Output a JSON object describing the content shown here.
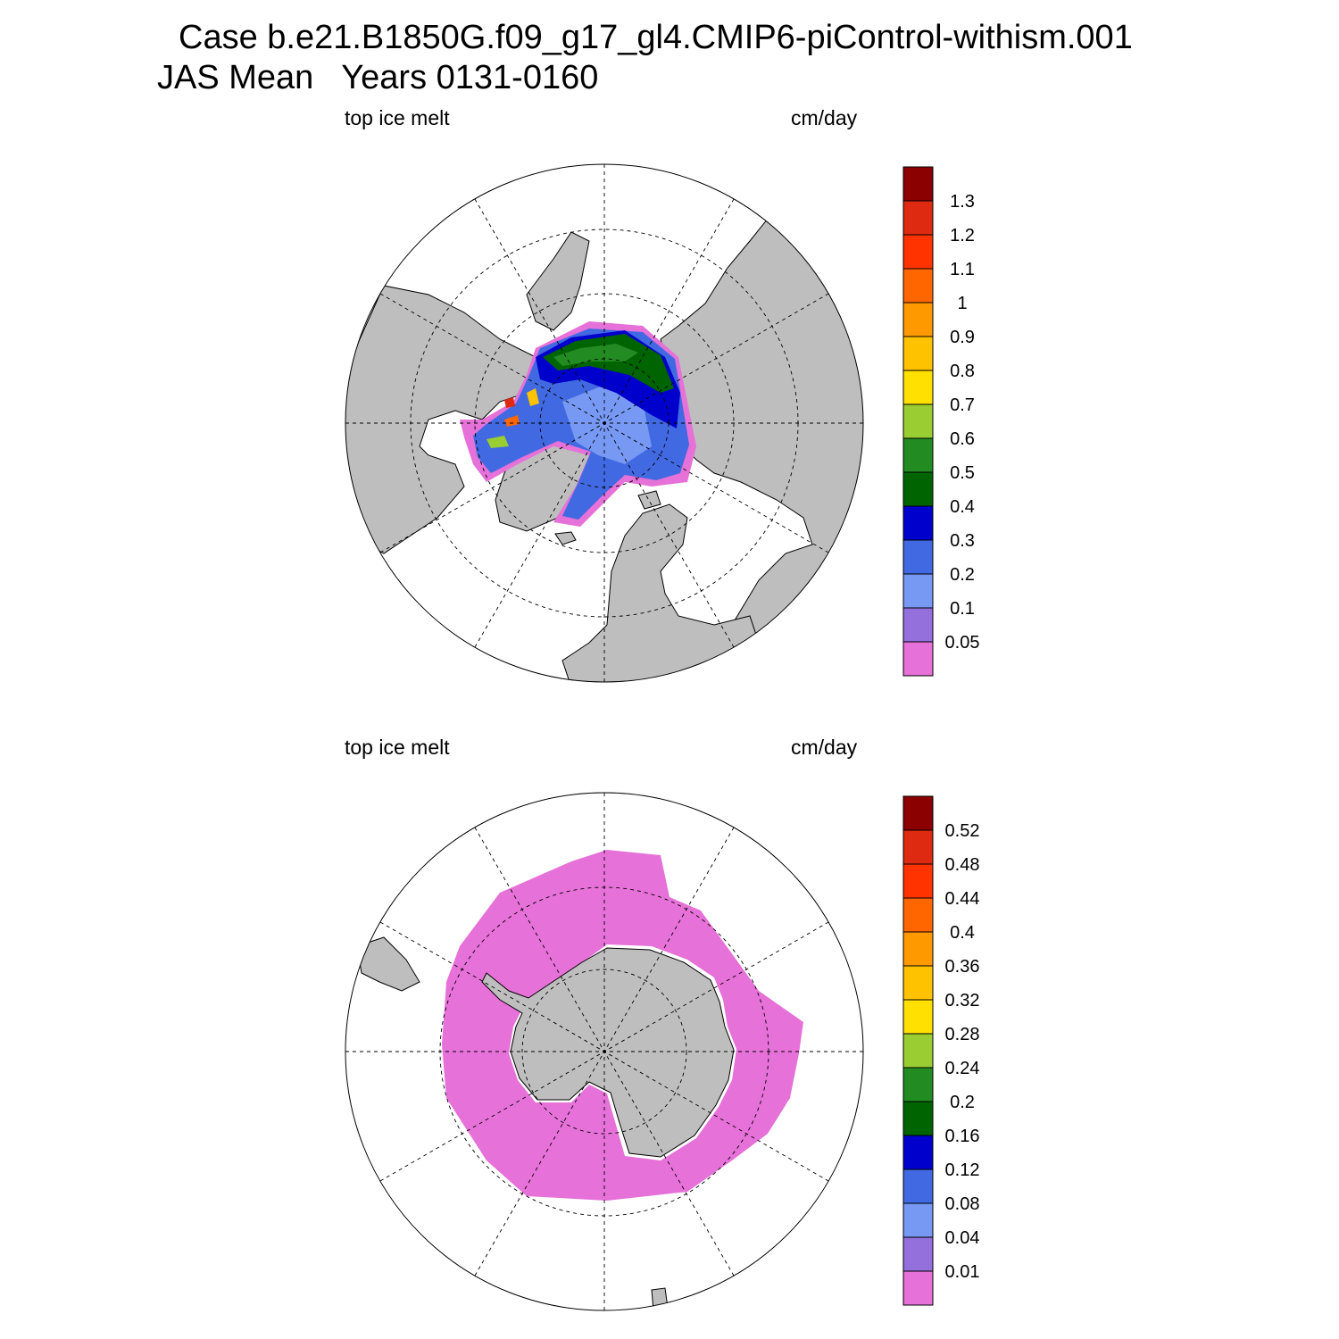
{
  "header": {
    "title_line1": "Case b.e21.B1850G.f09_g17_gl4.CMIP6-piControl-withism.001",
    "title_line2": "JAS Mean   Years 0131-0160"
  },
  "colors": {
    "land": "#bebebe",
    "ocean": "#ffffff",
    "palette": [
      "#e671d8",
      "#9370db",
      "#7799f4",
      "#4169e1",
      "#0000cd",
      "#006400",
      "#228b22",
      "#9acd32",
      "#ffe000",
      "#ffc200",
      "#ff9900",
      "#ff6600",
      "#ff3300",
      "#dd2a10",
      "#8b0000"
    ]
  },
  "panels": [
    {
      "id": "nh",
      "left_label": "top ice melt",
      "right_label": "cm/day",
      "colorbar_levels": [
        "0.05",
        "0.1",
        "0.2",
        "0.3",
        "0.4",
        "0.5",
        "0.6",
        "0.7",
        "0.8",
        "0.9",
        "1",
        "1.1",
        "1.2",
        "1.3"
      ]
    },
    {
      "id": "sh",
      "left_label": "top ice melt",
      "right_label": "cm/day",
      "colorbar_levels": [
        "0.01",
        "0.04",
        "0.08",
        "0.12",
        "0.16",
        "0.2",
        "0.24",
        "0.28",
        "0.32",
        "0.36",
        "0.4",
        "0.44",
        "0.48",
        "0.52"
      ]
    }
  ]
}
